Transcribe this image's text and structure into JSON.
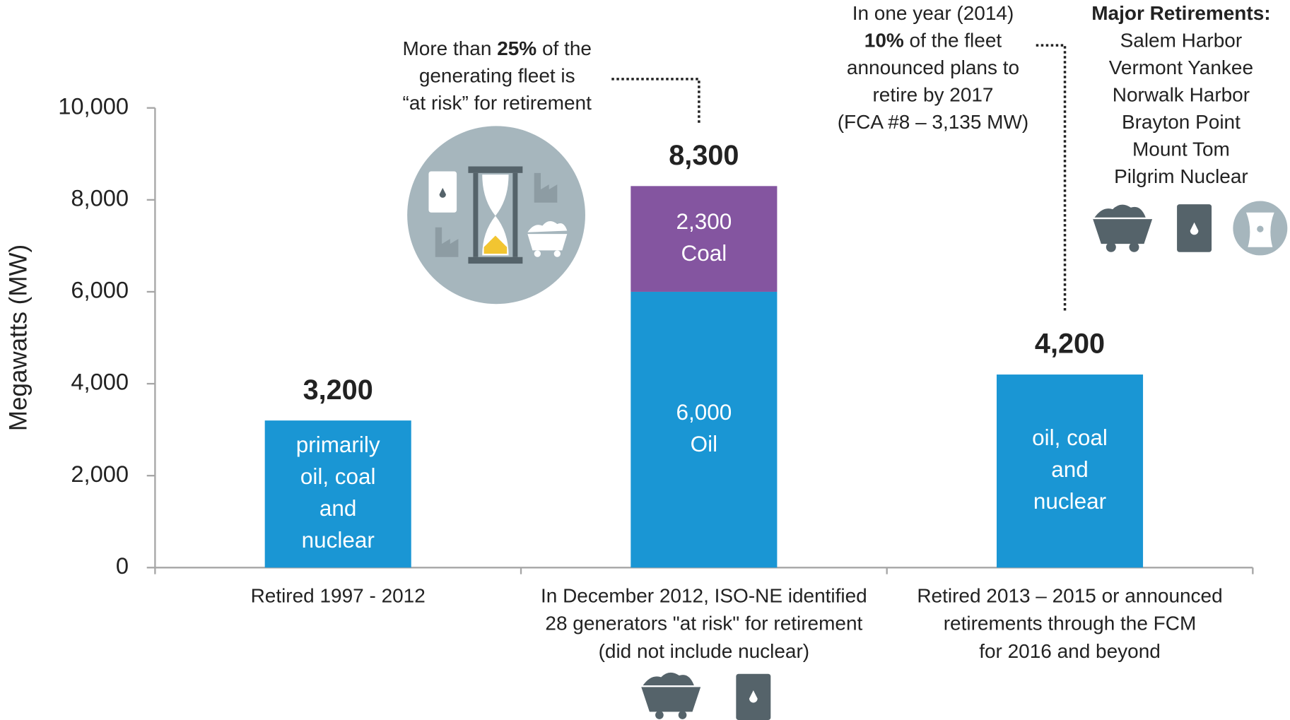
{
  "chart_data": {
    "type": "stacked-bar",
    "y_label": "Megawatts (MW)",
    "categories": [
      [
        "Retired 1997 - 2012"
      ],
      [
        "In December 2012, ISO-NE identified",
        "28 generators \"at risk\" for retirement",
        "(did not include nuclear)"
      ],
      [
        "Retired 2013 – 2015 or announced",
        "retirements through the FCM",
        "for 2016 and beyond"
      ]
    ],
    "series": [
      {
        "color": "#1a96d4",
        "values": [
          3200,
          6000,
          4200
        ],
        "value_labels": [
          null,
          "6,000",
          null
        ],
        "labels": [
          [
            "primarily",
            "oil, coal",
            "and",
            "nuclear"
          ],
          [
            "Oil"
          ],
          [
            "oil, coal",
            "and",
            "nuclear"
          ]
        ]
      },
      {
        "color": "#8455a0",
        "values": [
          null,
          2300,
          null
        ],
        "value_labels": [
          null,
          "2,300",
          null
        ],
        "labels": [
          null,
          [
            "Coal"
          ],
          null
        ]
      }
    ],
    "totals": {
      "values": [
        3200,
        8300,
        4200
      ],
      "value_labels": [
        "3,200",
        "8,300",
        "4,200"
      ]
    },
    "ylim": [
      0,
      10000
    ],
    "yticks": [
      0,
      {
        "value": 2000,
        "label": "2,000"
      },
      {
        "value": 4000,
        "label": "4,000"
      },
      {
        "value": 6000,
        "label": "6,000"
      },
      {
        "value": 8000,
        "label": "8,000"
      },
      {
        "value": 10000,
        "label": "10,000"
      }
    ],
    "annotations": [
      {
        "lines": [
          [
            {
              "t": "More than "
            },
            {
              "t": "25%",
              "b": true
            },
            {
              "t": " of the"
            }
          ],
          [
            {
              "t": "generating fleet is"
            }
          ],
          [
            {
              "t": "“at risk” for retirement"
            }
          ]
        ]
      },
      {
        "lines": [
          [
            {
              "t": "In one year (2014)"
            }
          ],
          [
            {
              "t": "10%",
              "b": true
            },
            {
              "t": " of the fleet"
            }
          ],
          [
            {
              "t": "announced plans to"
            }
          ],
          [
            {
              "t": "retire by 2017"
            }
          ],
          [
            {
              "t": "(FCA #8 – 3,135 MW)"
            }
          ]
        ]
      },
      {
        "lines": [
          [
            {
              "t": "Major Retirements:",
              "b": true
            }
          ],
          [
            {
              "t": "Salem Harbor"
            }
          ],
          [
            {
              "t": "Vermont Yankee"
            }
          ],
          [
            {
              "t": "Norwalk Harbor"
            }
          ],
          [
            {
              "t": "Brayton Point"
            }
          ],
          [
            {
              "t": "Mount Tom"
            }
          ],
          [
            {
              "t": "Pilgrim Nuclear"
            }
          ]
        ]
      }
    ]
  }
}
